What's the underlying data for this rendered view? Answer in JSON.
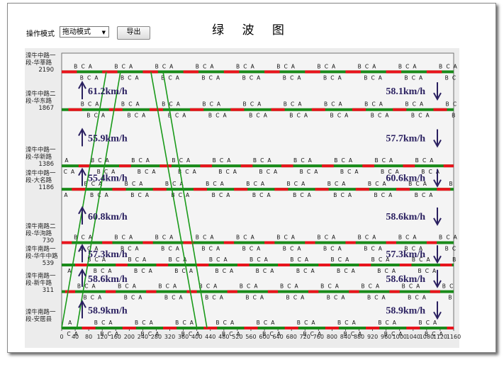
{
  "controls": {
    "mode_label": "操作模式",
    "mode_value": "拖动模式",
    "export": "导出"
  },
  "chart_data": {
    "type": "time-space",
    "title": "绿 波 图",
    "xlim": [
      0,
      1160
    ],
    "xticks": [
      0,
      40,
      80,
      120,
      160,
      200,
      240,
      280,
      320,
      360,
      400,
      440,
      480,
      520,
      560,
      600,
      640,
      680,
      720,
      760,
      800,
      840,
      880,
      920,
      960,
      1000,
      1040,
      1080,
      1120,
      1160
    ],
    "ylim": [
      0,
      2350
    ],
    "intersections": [
      {
        "name": "滦牛南路一段-安居县",
        "distance": 0
      },
      {
        "name": "滦牛南路一段-新牛路",
        "distance": 311
      },
      {
        "name": "滦牛南路一段-华牛中路",
        "distance": 539
      },
      {
        "name": "滦牛南路二段-华洵路",
        "distance": 730
      },
      {
        "name": "滦牛中路一段-大名路",
        "distance": 1186
      },
      {
        "name": "滦牛中路一段-华新路",
        "distance": 1386
      },
      {
        "name": "滦牛中路二段-华东路",
        "distance": 1867
      },
      {
        "name": "滦牛中路一段-华莘路",
        "distance": 2190
      }
    ],
    "phase_labels": [
      "B",
      "C",
      "A"
    ],
    "cycle": 120,
    "signals": [
      {
        "offset": 60,
        "red": 40
      },
      {
        "offset": 10,
        "red": 30
      },
      {
        "offset": 40,
        "red": 35
      },
      {
        "offset": 0,
        "red": 30
      },
      {
        "offset": 30,
        "red": 40
      },
      {
        "offset": 50,
        "red": 35
      },
      {
        "offset": 20,
        "red": 40
      },
      {
        "offset": 0,
        "red": 45
      }
    ],
    "speeds_up": [
      "58.9km/h",
      "58.6km/h",
      "57.3km/h",
      "60.8km/h",
      "55.4km/h",
      "55.9km/h",
      "61.2km/h"
    ],
    "speeds_down": [
      "58.9km/h",
      "58.6km/h",
      "57.3km/h",
      "58.6km/h",
      "60.6km/h",
      "57.7km/h",
      "58.1km/h"
    ],
    "bands": [
      {
        "color": "#1a9a1a",
        "x": [
          0,
          132
        ],
        "y": [
          0,
          2190
        ]
      },
      {
        "color": "#1a9a1a",
        "x": [
          45,
          174
        ],
        "y": [
          0,
          2190
        ]
      },
      {
        "color": "#1a9a1a",
        "x": [
          264,
          400
        ],
        "y": [
          2190,
          0
        ]
      },
      {
        "color": "#1a9a1a",
        "x": [
          300,
          430
        ],
        "y": [
          2190,
          0
        ]
      }
    ],
    "signal_colors": {
      "red": "#e8141c",
      "green": "#1a8a1a"
    }
  }
}
